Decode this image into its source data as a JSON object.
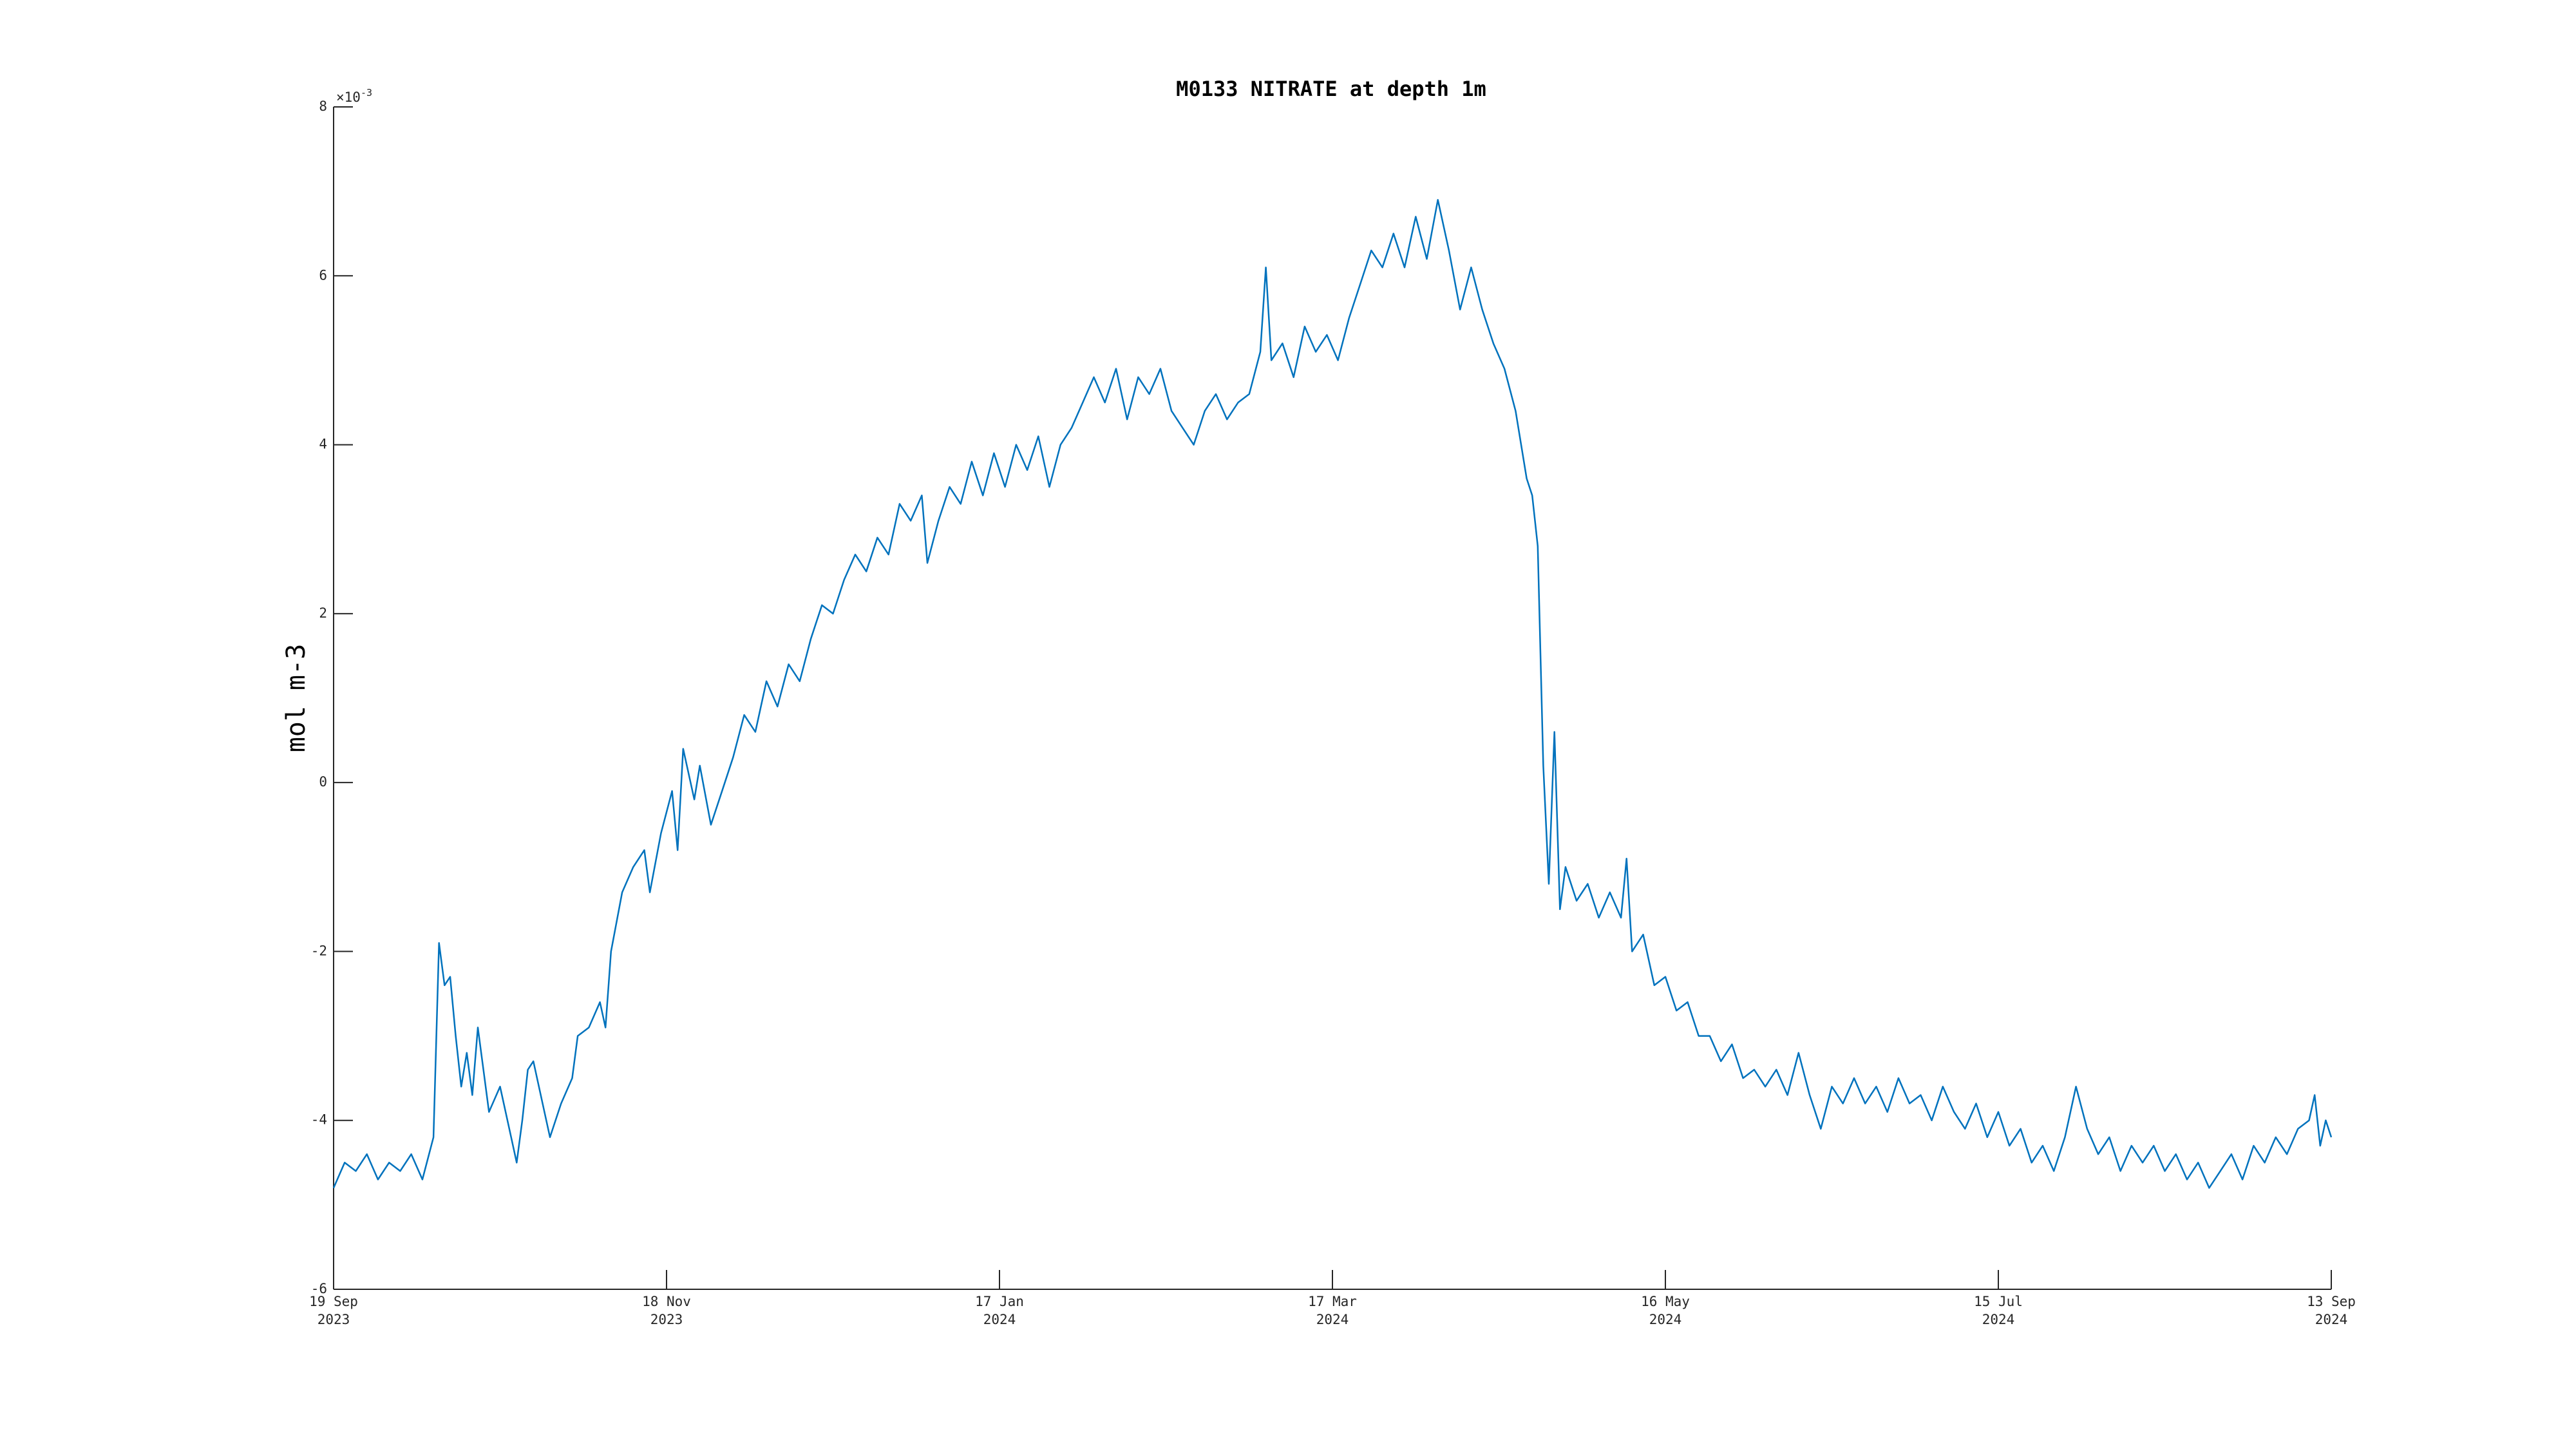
{
  "chart_data": {
    "type": "line",
    "title": "M0133 NITRATE at depth 1m",
    "y_label": "mol m-3",
    "y_multiplier": "×10",
    "y_multiplier_exponent": "-3",
    "color": "#0072bd",
    "ylim": [
      -6,
      8
    ],
    "yticks": [
      -6,
      -4,
      -2,
      0,
      2,
      4,
      6,
      8
    ],
    "xlim": [
      "2023-09-19",
      "2024-09-13"
    ],
    "xticks": [
      {
        "value": "2023-09-19",
        "label": [
          "19 Sep",
          "2023"
        ]
      },
      {
        "value": "2023-11-18",
        "label": [
          "18 Nov",
          "2023"
        ]
      },
      {
        "value": "2024-01-17",
        "label": [
          "17 Jan",
          "2024"
        ]
      },
      {
        "value": "2024-03-17",
        "label": [
          "17 Mar",
          "2024"
        ]
      },
      {
        "value": "2024-05-16",
        "label": [
          "16 May",
          "2024"
        ]
      },
      {
        "value": "2024-07-15",
        "label": [
          "15 Jul",
          "2024"
        ]
      },
      {
        "value": "2024-09-13",
        "label": [
          "13 Sep",
          "2024"
        ]
      }
    ],
    "x": [
      "2023-09-19",
      "2023-09-21",
      "2023-09-23",
      "2023-09-25",
      "2023-09-27",
      "2023-09-29",
      "2023-10-01",
      "2023-10-03",
      "2023-10-05",
      "2023-10-07",
      "2023-10-08",
      "2023-10-09",
      "2023-10-10",
      "2023-10-11",
      "2023-10-12",
      "2023-10-13",
      "2023-10-14",
      "2023-10-15",
      "2023-10-17",
      "2023-10-19",
      "2023-10-21",
      "2023-10-22",
      "2023-10-23",
      "2023-10-24",
      "2023-10-25",
      "2023-10-27",
      "2023-10-28",
      "2023-10-30",
      "2023-11-01",
      "2023-11-02",
      "2023-11-04",
      "2023-11-06",
      "2023-11-07",
      "2023-11-08",
      "2023-11-10",
      "2023-11-12",
      "2023-11-14",
      "2023-11-15",
      "2023-11-17",
      "2023-11-19",
      "2023-11-20",
      "2023-11-21",
      "2023-11-23",
      "2023-11-24",
      "2023-11-26",
      "2023-11-28",
      "2023-11-30",
      "2023-12-02",
      "2023-12-04",
      "2023-12-06",
      "2023-12-08",
      "2023-12-10",
      "2023-12-12",
      "2023-12-14",
      "2023-12-16",
      "2023-12-18",
      "2023-12-20",
      "2023-12-22",
      "2023-12-24",
      "2023-12-26",
      "2023-12-28",
      "2023-12-30",
      "2024-01-01",
      "2024-01-03",
      "2024-01-04",
      "2024-01-06",
      "2024-01-08",
      "2024-01-10",
      "2024-01-12",
      "2024-01-14",
      "2024-01-16",
      "2024-01-18",
      "2024-01-20",
      "2024-01-22",
      "2024-01-24",
      "2024-01-26",
      "2024-01-28",
      "2024-01-30",
      "2024-02-01",
      "2024-02-03",
      "2024-02-05",
      "2024-02-07",
      "2024-02-09",
      "2024-02-11",
      "2024-02-13",
      "2024-02-15",
      "2024-02-17",
      "2024-02-19",
      "2024-02-21",
      "2024-02-23",
      "2024-02-25",
      "2024-02-27",
      "2024-02-29",
      "2024-03-02",
      "2024-03-04",
      "2024-03-05",
      "2024-03-06",
      "2024-03-08",
      "2024-03-10",
      "2024-03-12",
      "2024-03-14",
      "2024-03-16",
      "2024-03-18",
      "2024-03-20",
      "2024-03-22",
      "2024-03-24",
      "2024-03-26",
      "2024-03-28",
      "2024-03-30",
      "2024-04-01",
      "2024-04-03",
      "2024-04-05",
      "2024-04-07",
      "2024-04-09",
      "2024-04-11",
      "2024-04-13",
      "2024-04-15",
      "2024-04-17",
      "2024-04-19",
      "2024-04-21",
      "2024-04-22",
      "2024-04-23",
      "2024-04-24",
      "2024-04-25",
      "2024-04-26",
      "2024-04-27",
      "2024-04-28",
      "2024-04-30",
      "2024-05-02",
      "2024-05-04",
      "2024-05-06",
      "2024-05-08",
      "2024-05-09",
      "2024-05-10",
      "2024-05-12",
      "2024-05-14",
      "2024-05-16",
      "2024-05-18",
      "2024-05-20",
      "2024-05-22",
      "2024-05-24",
      "2024-05-26",
      "2024-05-28",
      "2024-05-30",
      "2024-06-01",
      "2024-06-03",
      "2024-06-05",
      "2024-06-07",
      "2024-06-09",
      "2024-06-11",
      "2024-06-13",
      "2024-06-15",
      "2024-06-17",
      "2024-06-19",
      "2024-06-21",
      "2024-06-23",
      "2024-06-25",
      "2024-06-27",
      "2024-06-29",
      "2024-07-01",
      "2024-07-03",
      "2024-07-05",
      "2024-07-07",
      "2024-07-09",
      "2024-07-11",
      "2024-07-13",
      "2024-07-15",
      "2024-07-17",
      "2024-07-19",
      "2024-07-21",
      "2024-07-23",
      "2024-07-25",
      "2024-07-27",
      "2024-07-29",
      "2024-07-31",
      "2024-08-02",
      "2024-08-04",
      "2024-08-06",
      "2024-08-08",
      "2024-08-10",
      "2024-08-12",
      "2024-08-14",
      "2024-08-16",
      "2024-08-18",
      "2024-08-20",
      "2024-08-22",
      "2024-08-24",
      "2024-08-26",
      "2024-08-28",
      "2024-08-30",
      "2024-09-01",
      "2024-09-03",
      "2024-09-05",
      "2024-09-07",
      "2024-09-09",
      "2024-09-10",
      "2024-09-11",
      "2024-09-12",
      "2024-09-13"
    ],
    "values": [
      -4.8,
      -4.5,
      -4.6,
      -4.4,
      -4.7,
      -4.5,
      -4.6,
      -4.4,
      -4.7,
      -4.2,
      -1.9,
      -2.4,
      -2.3,
      -3.0,
      -3.6,
      -3.2,
      -3.7,
      -2.9,
      -3.9,
      -3.6,
      -4.2,
      -4.5,
      -4.0,
      -3.4,
      -3.3,
      -3.9,
      -4.2,
      -3.8,
      -3.5,
      -3.0,
      -2.9,
      -2.6,
      -2.9,
      -2.0,
      -1.3,
      -1.0,
      -0.8,
      -1.3,
      -0.6,
      -0.1,
      -0.8,
      0.4,
      -0.2,
      0.2,
      -0.5,
      -0.1,
      0.3,
      0.8,
      0.6,
      1.2,
      0.9,
      1.4,
      1.2,
      1.7,
      2.1,
      2.0,
      2.4,
      2.7,
      2.5,
      2.9,
      2.7,
      3.3,
      3.1,
      3.4,
      2.6,
      3.1,
      3.5,
      3.3,
      3.8,
      3.4,
      3.9,
      3.5,
      4.0,
      3.7,
      4.1,
      3.5,
      4.0,
      4.2,
      4.5,
      4.8,
      4.5,
      4.9,
      4.3,
      4.8,
      4.6,
      4.9,
      4.4,
      4.2,
      4.0,
      4.4,
      4.6,
      4.3,
      4.5,
      4.6,
      5.1,
      6.1,
      5.0,
      5.2,
      4.8,
      5.4,
      5.1,
      5.3,
      5.0,
      5.5,
      5.9,
      6.3,
      6.1,
      6.5,
      6.1,
      6.7,
      6.2,
      6.9,
      6.3,
      5.6,
      6.1,
      5.6,
      5.2,
      4.9,
      4.4,
      3.6,
      3.4,
      2.8,
      0.2,
      -1.2,
      0.6,
      -1.5,
      -1.0,
      -1.4,
      -1.2,
      -1.6,
      -1.3,
      -1.6,
      -0.9,
      -2.0,
      -1.8,
      -2.4,
      -2.3,
      -2.7,
      -2.6,
      -3.0,
      -3.0,
      -3.3,
      -3.1,
      -3.5,
      -3.4,
      -3.6,
      -3.4,
      -3.7,
      -3.2,
      -3.7,
      -4.1,
      -3.6,
      -3.8,
      -3.5,
      -3.8,
      -3.6,
      -3.9,
      -3.5,
      -3.8,
      -3.7,
      -4.0,
      -3.6,
      -3.9,
      -4.1,
      -3.8,
      -4.2,
      -3.9,
      -4.3,
      -4.1,
      -4.5,
      -4.3,
      -4.6,
      -4.2,
      -3.6,
      -4.1,
      -4.4,
      -4.2,
      -4.6,
      -4.3,
      -4.5,
      -4.3,
      -4.6,
      -4.4,
      -4.7,
      -4.5,
      -4.8,
      -4.6,
      -4.4,
      -4.7,
      -4.3,
      -4.5,
      -4.2,
      -4.4,
      -4.1,
      -4.0,
      -3.7,
      -4.3,
      -4.0,
      -4.2
    ]
  }
}
